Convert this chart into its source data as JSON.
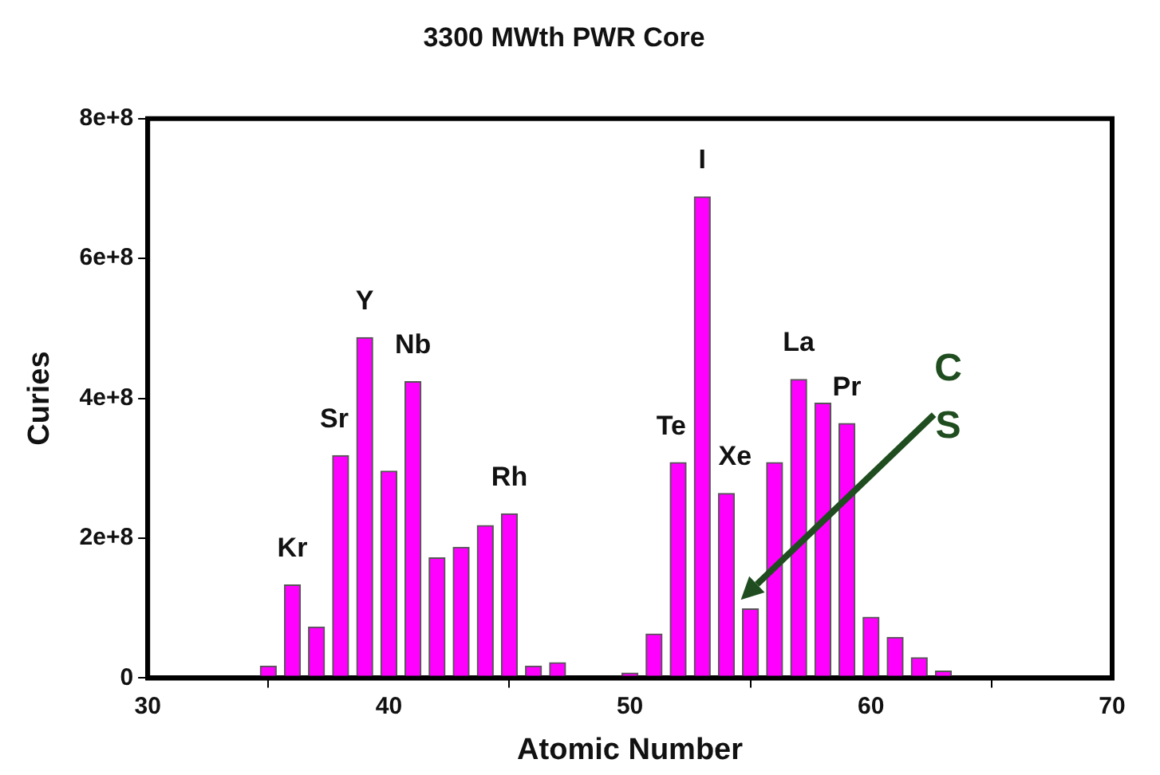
{
  "chart_data": {
    "type": "bar",
    "title": "3300 MWth PWR Core",
    "xlabel": "Atomic Number",
    "ylabel": "Curies",
    "color": "#ff00ff",
    "x": [
      35,
      36,
      37,
      38,
      39,
      40,
      41,
      42,
      43,
      44,
      45,
      46,
      47,
      48,
      49,
      50,
      51,
      52,
      53,
      54,
      55,
      56,
      57,
      58,
      59,
      60,
      61,
      62,
      63
    ],
    "values": [
      17000000.0,
      133000000.0,
      73000000.0,
      318000000.0,
      487000000.0,
      296000000.0,
      424000000.0,
      172000000.0,
      187000000.0,
      218000000.0,
      235000000.0,
      17000000.0,
      22000000.0,
      0,
      0,
      7000000.0,
      63000000.0,
      308000000.0,
      688000000.0,
      264000000.0,
      99000000.0,
      308000000.0,
      427000000.0,
      393000000.0,
      364000000.0,
      87000000.0,
      58000000.0,
      29000000.0,
      10000000.0
    ],
    "xlim": [
      30,
      70
    ],
    "xticks": [
      30,
      40,
      50,
      60,
      70
    ],
    "ylim": [
      0,
      800000000.0
    ],
    "yticks": [
      {
        "value": 0,
        "label": "0"
      },
      {
        "value": 200000000.0,
        "label": "2e+8"
      },
      {
        "value": 400000000.0,
        "label": "4e+8"
      },
      {
        "value": 600000000.0,
        "label": "6e+8"
      },
      {
        "value": 800000000.0,
        "label": "8e+8"
      }
    ],
    "grid": false,
    "legend": false,
    "annotations": [
      {
        "text": "Kr",
        "x": 36,
        "y": 133000000.0
      },
      {
        "text": "Sr",
        "x": 38,
        "y": 318000000.0
      },
      {
        "text": "Y",
        "x": 39,
        "y": 487000000.0
      },
      {
        "text": "Nb",
        "x": 41,
        "y": 424000000.0
      },
      {
        "text": "Rh",
        "x": 45,
        "y": 235000000.0
      },
      {
        "text": "I",
        "x": 53,
        "y": 688000000.0
      },
      {
        "text": "Te",
        "x": 52,
        "y": 308000000.0
      },
      {
        "text": "Xe",
        "x": 54,
        "y": 264000000.0
      },
      {
        "text": "La",
        "x": 57,
        "y": 427000000.0
      },
      {
        "text": "Pr",
        "x": 59,
        "y": 364000000.0
      },
      "C\nS"
    ]
  }
}
